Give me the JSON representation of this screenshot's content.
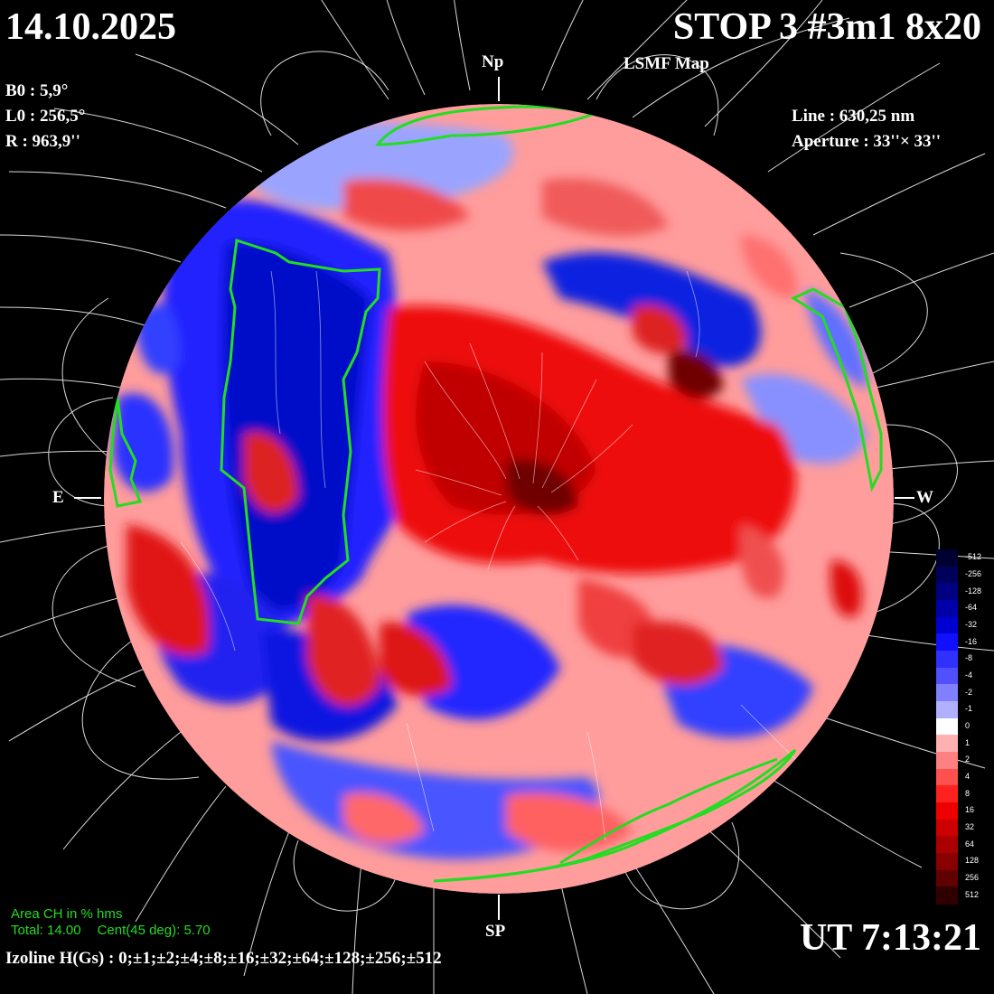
{
  "header": {
    "date": "14.10.2025",
    "title": "STOP 3 #3m1 8x20",
    "subtitle": "LSMF  Map"
  },
  "params": {
    "b0": "B0 : 5,9°",
    "l0": "L0 : 256,5°",
    "r": "R  : 963,9''",
    "line": "Line :  630,25 nm",
    "aperture": "Aperture : 33''× 33''"
  },
  "directions": {
    "north": "Np",
    "south": "SP",
    "east": "E",
    "west": "W"
  },
  "footer": {
    "ut": "UT 7:13:21",
    "isolines": "Izoline H(Gs) : 0;±1;±2;±4;±8;±16;±32;±64;±128;±256;±512",
    "ch_title": "Area CH in % hms",
    "ch_total": "Total: 14.00",
    "ch_cent": "Cent(45 deg): 5.70"
  },
  "colorbar": {
    "labels": [
      "-512",
      "-256",
      "-128",
      "-64",
      "-32",
      "-16",
      "-8",
      "-4",
      "-2",
      "-1",
      "0",
      "1",
      "2",
      "4",
      "8",
      "16",
      "32",
      "64",
      "128",
      "256",
      "512"
    ],
    "colors": [
      "#000030",
      "#00005a",
      "#000080",
      "#0000a8",
      "#0000d0",
      "#1010ff",
      "#3030ff",
      "#5050ff",
      "#8080ff",
      "#b0b0ff",
      "#ffffff",
      "#ffb0b0",
      "#ff8080",
      "#ff5050",
      "#ff2020",
      "#ee0000",
      "#cc0000",
      "#aa0000",
      "#880000",
      "#600000",
      "#300000"
    ]
  },
  "colors": {
    "background": "#000000",
    "positive_strong": "#d00000",
    "positive_weak": "#ff9090",
    "negative_strong": "#0010c0",
    "negative_weak": "#a0a8ff",
    "coronal_hole_boundary": "#22dd22",
    "field_lines": "#ffffff"
  }
}
